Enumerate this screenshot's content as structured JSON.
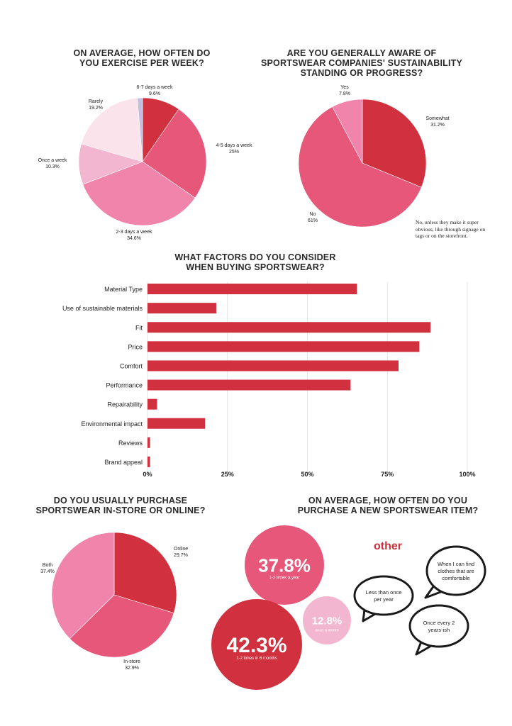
{
  "chart_data": [
    {
      "type": "pie",
      "title_lines": [
        "ON AVERAGE, HOW OFTEN DO",
        "YOU EXERCISE PER WEEK?"
      ],
      "slices": [
        {
          "label": "6-7 days a week",
          "value": 9.6,
          "value_label": "9.6%",
          "color": "#d1303e"
        },
        {
          "label": "4-5 days a week",
          "value": 25,
          "value_label": "25%",
          "color": "#e6577a"
        },
        {
          "label": "2-3 days a week",
          "value": 34.6,
          "value_label": "34.6%",
          "color": "#f084ab"
        },
        {
          "label": "Once a week",
          "value": 10.3,
          "value_label": "10.3%",
          "color": "#f3b6d0"
        },
        {
          "label": "Rarely",
          "value": 19.2,
          "value_label": "19.2%",
          "color": "#fbe3ec"
        },
        {
          "label": "",
          "value": 1.3,
          "value_label": "",
          "color": "#c2bedf"
        }
      ]
    },
    {
      "type": "pie",
      "title_lines": [
        "ARE YOU GENERALLY AWARE OF",
        "SPORTSWEAR COMPANIES' SUSTAINABILITY",
        "STANDING OR PROGRESS?"
      ],
      "slices": [
        {
          "label": "Somewhat",
          "value": 31.2,
          "value_label": "31.2%",
          "color": "#d1303e"
        },
        {
          "label": "No",
          "value": 61,
          "value_label": "61%",
          "color": "#e6577a"
        },
        {
          "label": "Yes",
          "value": 7.8,
          "value_label": "7.8%",
          "color": "#f084ab"
        }
      ],
      "annotation": "No, unless they make it super obvious, like through signage on tags or on the storefront."
    },
    {
      "type": "bar",
      "orientation": "horizontal",
      "title_lines": [
        "WHAT FACTORS DO YOU CONSIDER",
        "WHEN BUYING SPORTSWEAR?"
      ],
      "categories": [
        "Material Type",
        "Use of sustainable materials",
        "Fit",
        "Price",
        "Comfort",
        "Performance",
        "Repairability",
        "Environmental impact",
        "Reviews",
        "Brand appeal"
      ],
      "values": [
        65.5,
        21.5,
        88.5,
        85,
        78.5,
        63.5,
        3,
        18,
        0.8,
        0.8
      ],
      "xlim": [
        0,
        100
      ],
      "xticks": [
        "0%",
        "25%",
        "50%",
        "75%",
        "100%"
      ],
      "color": "#d1303e",
      "grid": true
    },
    {
      "type": "pie",
      "title_lines": [
        "DO YOU USUALLY PURCHASE",
        "SPORTSWEAR IN-STORE OR ONLINE?"
      ],
      "slices": [
        {
          "label": "Online",
          "value": 29.7,
          "value_label": "29.7%",
          "color": "#d1303e"
        },
        {
          "label": "In-store",
          "value": 32.9,
          "value_label": "32.9%",
          "color": "#e6577a"
        },
        {
          "label": "Both",
          "value": 37.4,
          "value_label": "37.4%",
          "color": "#f084ab"
        }
      ]
    },
    {
      "type": "bubble",
      "title_lines": [
        "ON AVERAGE, HOW OFTEN DO YOU",
        "PURCHASE A NEW SPORTSWEAR ITEM?"
      ],
      "bubbles": [
        {
          "value_label": "37.8%",
          "caption": "1-2 times a year",
          "value": 37.8,
          "color": "#e6577a"
        },
        {
          "value_label": "42.3%",
          "caption": "1-2 times in 6 months",
          "value": 42.3,
          "color": "#d1303e"
        },
        {
          "value_label": "12.8%",
          "caption": "once a month",
          "value": 12.8,
          "color": "#f3b6d0"
        }
      ],
      "other_label": "other",
      "other_color": "#d1303e",
      "other_answers": [
        "Less than once per year",
        "When I can find clothes that are comfortable",
        "Once every 2 years-ish"
      ]
    }
  ]
}
